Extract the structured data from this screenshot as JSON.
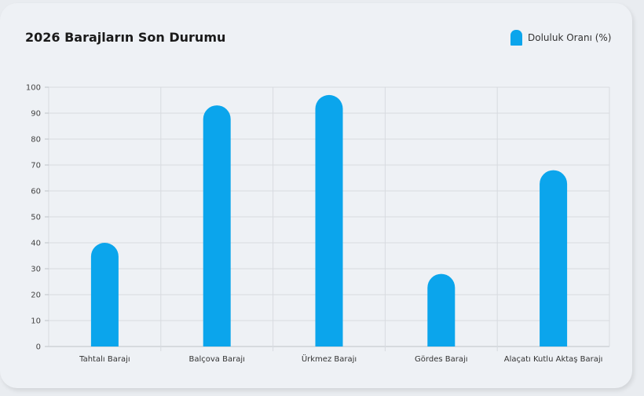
{
  "chart_data": {
    "type": "bar",
    "title": "2026 Barajların Son Durumu",
    "categories": [
      "Tahtalı Barajı",
      "Balçova Barajı",
      "Ürkmez Barajı",
      "Gördes Barajı",
      "Alaçatı Kutlu Aktaş Barajı"
    ],
    "series": [
      {
        "name": "Doluluk Oranı (%)",
        "values": [
          40,
          93,
          97,
          28,
          68
        ],
        "color": "#0ba5ec"
      }
    ],
    "ylim": [
      0,
      100
    ],
    "yticks": [
      0,
      10,
      20,
      30,
      40,
      50,
      60,
      70,
      80,
      90,
      100
    ],
    "grid": true,
    "legend_position": "top-right"
  }
}
